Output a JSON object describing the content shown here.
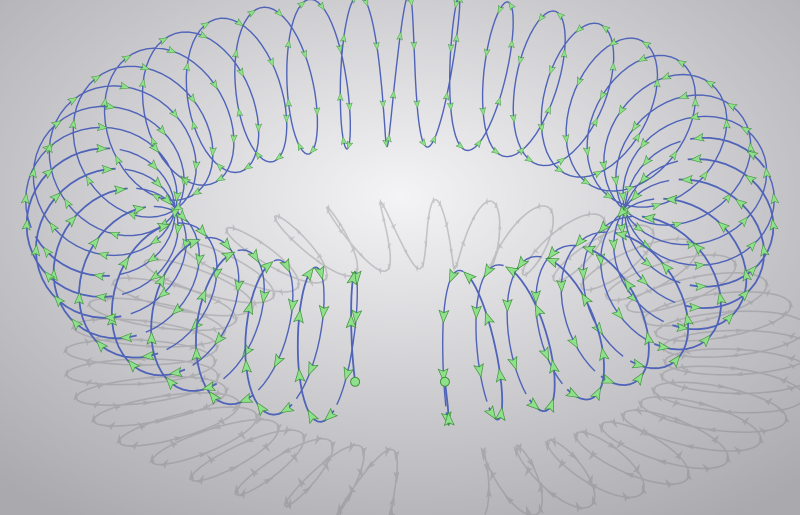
{
  "scene": {
    "subject": "toroidal-helix-vector-field",
    "colors": {
      "background_light": "#f4f4f6",
      "background_dark": "#a9a9ae",
      "helix_wire": "#4f63b8",
      "arrow": "#8ee08a",
      "arrow_edge": "#3f8f3c",
      "shadow": "#7d7d82"
    },
    "helix_turns": 40,
    "arrows_per_turn": 8,
    "has_gap_in_front": true
  }
}
